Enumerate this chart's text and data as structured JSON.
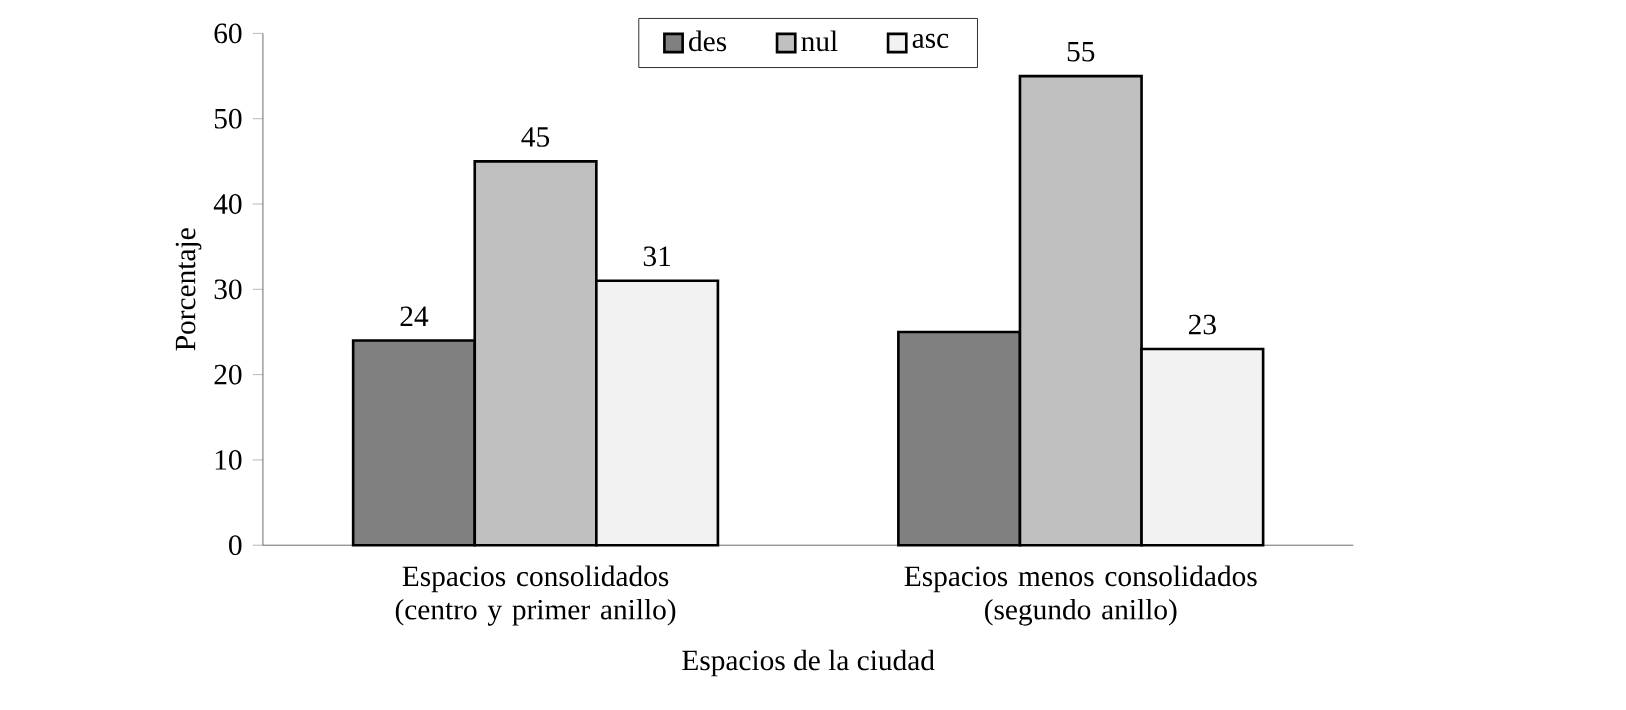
{
  "chart_data": {
    "type": "bar",
    "xlabel": "Espacios de la ciudad",
    "ylabel": "Porcentaje",
    "categories": [
      "Espacios consolidados (centro y primer anillo)",
      "Espacios menos consolidados (segundo anillo)"
    ],
    "series": [
      {
        "name": "des",
        "color": "#808080",
        "values": [
          24,
          25
        ],
        "value_labels": [
          "24",
          null
        ]
      },
      {
        "name": "nul",
        "color": "#c0c0c0",
        "values": [
          45,
          55
        ],
        "value_labels": [
          "45",
          "55"
        ]
      },
      {
        "name": "asc",
        "color": "#f2f2f2",
        "values": [
          31,
          23
        ],
        "value_labels": [
          "31",
          "23"
        ]
      }
    ],
    "ylim": [
      0,
      60
    ],
    "yticks": [
      0,
      10,
      20,
      30,
      40,
      50,
      60
    ],
    "grid": false,
    "legend": "top"
  }
}
